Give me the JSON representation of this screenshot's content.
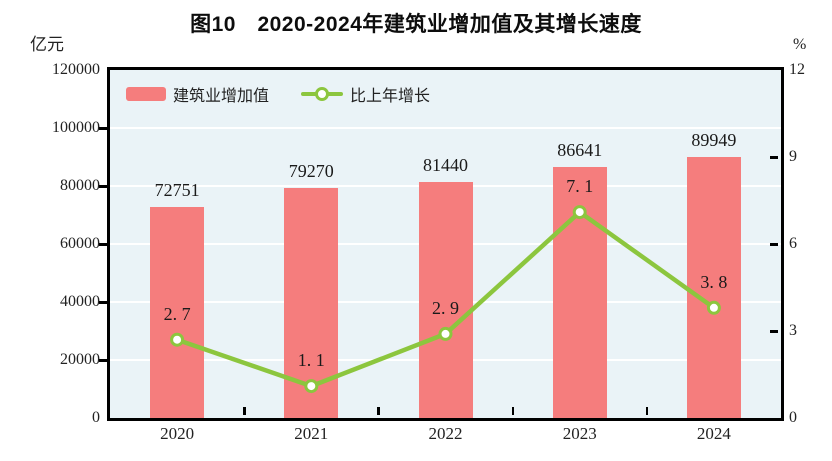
{
  "title": "图10　2020-2024年建筑业增加值及其增长速度",
  "axes": {
    "left": {
      "unit": "亿元",
      "ticks": [
        "120000",
        "100000",
        "80000",
        "60000",
        "40000",
        "20000",
        "0"
      ]
    },
    "right": {
      "unit": "%",
      "ticks": [
        "12",
        "9",
        "6",
        "3",
        "0"
      ]
    },
    "x": {
      "ticks": [
        "2020",
        "2021",
        "2022",
        "2023",
        "2024"
      ]
    }
  },
  "legend": {
    "bar_label": "建筑业增加值",
    "line_label": "比上年增长"
  },
  "chart_data": {
    "type": "bar",
    "categories": [
      "2020",
      "2021",
      "2022",
      "2023",
      "2024"
    ],
    "series": [
      {
        "name": "建筑业增加值",
        "type": "bar",
        "axis": "left",
        "unit": "亿元",
        "values": [
          72751,
          79270,
          81440,
          86641,
          89949
        ],
        "data_labels": [
          "72751",
          "79270",
          "81440",
          "86641",
          "89949"
        ],
        "color": "#f57d7d"
      },
      {
        "name": "比上年增长",
        "type": "line",
        "axis": "right",
        "unit": "%",
        "values": [
          2.7,
          1.1,
          2.9,
          7.1,
          3.8
        ],
        "data_labels": [
          "2. 7",
          "1. 1",
          "2. 9",
          "7. 1",
          "3. 8"
        ],
        "color": "#8cc63e",
        "marker": "circle-white-fill"
      }
    ],
    "left_ylim": [
      0,
      120000
    ],
    "right_ylim": [
      0,
      12
    ],
    "left_tick_step": 20000,
    "right_tick_step": 3,
    "grid": true,
    "gridline_color": "#ffffff",
    "plot_background": "#eaf3f7",
    "legend_position": "top-left-inside"
  },
  "colors": {
    "bar": "#f57d7d",
    "line": "#8cc63e",
    "plot_bg": "#eaf3f7",
    "grid": "#ffffff",
    "axis": "#000000",
    "text": "#222222"
  }
}
